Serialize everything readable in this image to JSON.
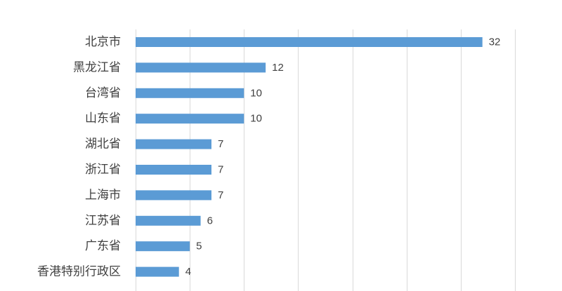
{
  "chart_data": {
    "type": "bar",
    "orientation": "horizontal",
    "categories": [
      "北京市",
      "黑龙江省",
      "台湾省",
      "山东省",
      "湖北省",
      "浙江省",
      "上海市",
      "江苏省",
      "广东省",
      "香港特别行政区"
    ],
    "values": [
      32,
      12,
      10,
      10,
      7,
      7,
      7,
      6,
      5,
      4
    ],
    "data_labels": [
      "32",
      "12",
      "10",
      "10",
      "7",
      "7",
      "7",
      "6",
      "5",
      "4"
    ],
    "xlim": [
      0,
      35
    ],
    "x_gridline_step": 5,
    "grid": true,
    "legend": "none",
    "bar_color": "#5b9bd5",
    "label_color": "#404040",
    "grid_color": "#d9d9d9"
  }
}
